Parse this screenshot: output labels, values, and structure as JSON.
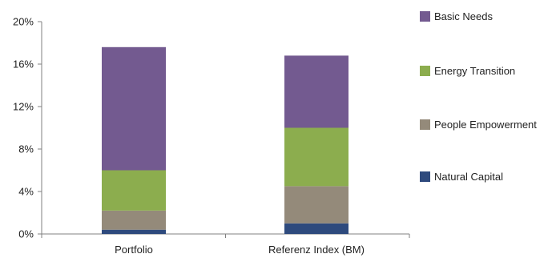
{
  "chart_data": {
    "type": "bar",
    "stacked": true,
    "categories": [
      "Portfolio",
      "Referenz Index (BM)"
    ],
    "series": [
      {
        "name": "Natural Capital",
        "values": [
          0.4,
          1.0
        ],
        "color": "#2e4a7d"
      },
      {
        "name": "People Empowerment",
        "values": [
          1.8,
          3.5
        ],
        "color": "#948a7a"
      },
      {
        "name": "Energy Transition",
        "values": [
          3.8,
          5.5
        ],
        "color": "#8cad4e"
      },
      {
        "name": "Basic Needs",
        "values": [
          11.6,
          6.8
        ],
        "color": "#735a90"
      }
    ],
    "y_ticks": [
      "0%",
      "4%",
      "8%",
      "12%",
      "16%",
      "20%"
    ],
    "ylim": [
      0,
      20
    ],
    "title": "",
    "xlabel": "",
    "ylabel": "",
    "grid": false,
    "legend_position": "right",
    "legend_order": [
      "Basic Needs",
      "Energy Transition",
      "People Empowerment",
      "Natural Capital"
    ]
  }
}
